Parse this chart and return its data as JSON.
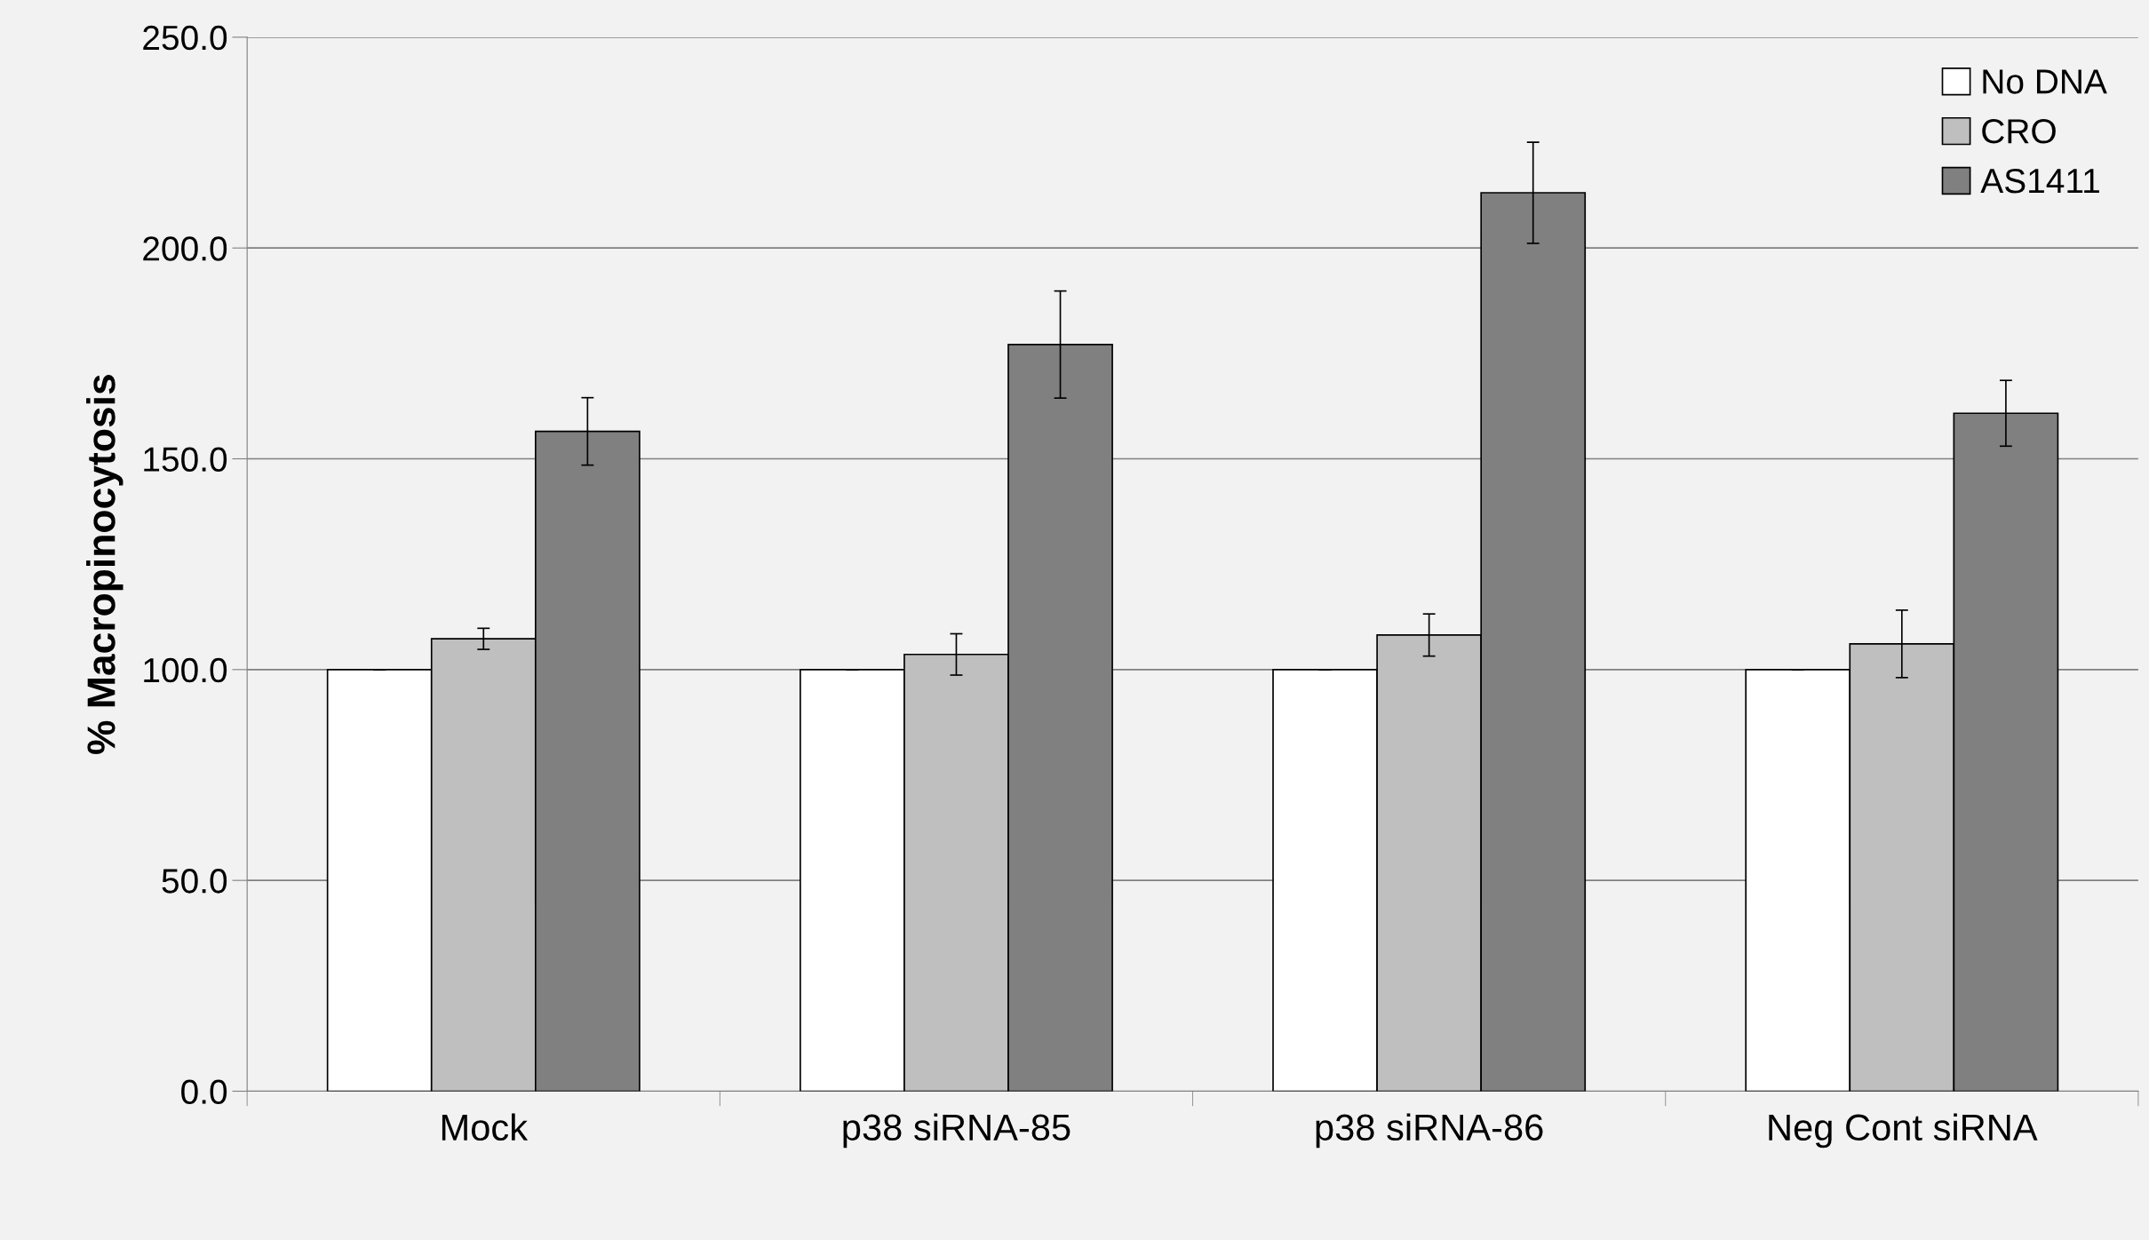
{
  "chart_data": {
    "type": "bar",
    "ylabel": "% Macropinocytosis",
    "categories": [
      "Mock",
      "p38 siRNA-85",
      "p38 siRNA-86",
      "Neg Cont siRNA"
    ],
    "series": [
      {
        "name": "No DNA",
        "color": "#ffffff",
        "values": [
          100,
          100,
          100,
          100
        ],
        "errors": [
          0,
          0,
          0,
          0
        ]
      },
      {
        "name": "CRO",
        "color": "#bfbfbf",
        "values": [
          107.3,
          103.6,
          108.2,
          106.1
        ],
        "errors": [
          2.5,
          4.9,
          5.0,
          8.0
        ]
      },
      {
        "name": "AS1411",
        "color": "#808080",
        "values": [
          156.5,
          177.1,
          213.1,
          160.8
        ],
        "errors": [
          8.0,
          12.7,
          12.0,
          7.8
        ]
      }
    ],
    "ylim": [
      0,
      250
    ],
    "yticks": [
      {
        "value": 0,
        "label": "0.0"
      },
      {
        "value": 50,
        "label": "50.0"
      },
      {
        "value": 100,
        "label": "100.0"
      },
      {
        "value": 150,
        "label": "150.0"
      },
      {
        "value": 200,
        "label": "200.0"
      },
      {
        "value": 250,
        "label": "250.0"
      }
    ],
    "grid": "y",
    "legend": "top right"
  }
}
